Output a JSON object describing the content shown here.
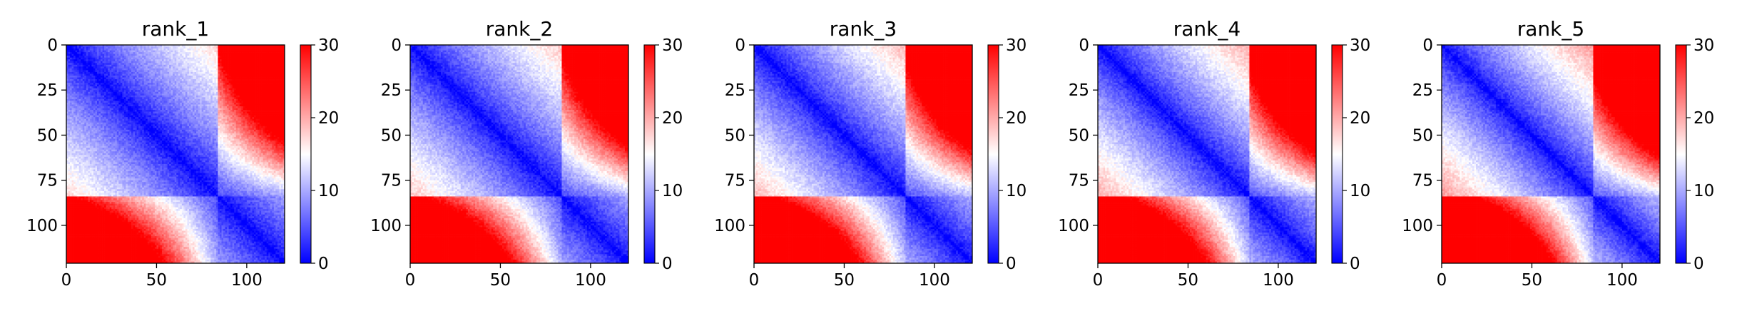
{
  "chart_data": [
    {
      "type": "heatmap",
      "title": "rank_1",
      "xlabel": "",
      "ylabel": "",
      "xlim": [
        0,
        121
      ],
      "ylim": [
        121,
        0
      ],
      "x_ticks": [
        0,
        50,
        100
      ],
      "y_ticks": [
        0,
        25,
        50,
        75,
        100
      ],
      "colorbar": {
        "ticks": [
          0,
          10,
          20,
          30
        ],
        "range": [
          0,
          30
        ]
      },
      "colormap": [
        "#0000ff",
        "#ffffff",
        "#ff0000"
      ],
      "matrix_size": 121,
      "domain_split": 84,
      "diagonal_value": 0,
      "far_corner_value": 30
    },
    {
      "type": "heatmap",
      "title": "rank_2",
      "xlabel": "",
      "ylabel": "",
      "xlim": [
        0,
        121
      ],
      "ylim": [
        121,
        0
      ],
      "x_ticks": [
        0,
        50,
        100
      ],
      "y_ticks": [
        0,
        25,
        50,
        75,
        100
      ],
      "colorbar": {
        "ticks": [
          0,
          10,
          20,
          30
        ],
        "range": [
          0,
          30
        ]
      },
      "colormap": [
        "#0000ff",
        "#ffffff",
        "#ff0000"
      ],
      "matrix_size": 121,
      "domain_split": 84,
      "diagonal_value": 0,
      "far_corner_value": 30
    },
    {
      "type": "heatmap",
      "title": "rank_3",
      "xlabel": "",
      "ylabel": "",
      "xlim": [
        0,
        121
      ],
      "ylim": [
        121,
        0
      ],
      "x_ticks": [
        0,
        50,
        100
      ],
      "y_ticks": [
        0,
        25,
        50,
        75,
        100
      ],
      "colorbar": {
        "ticks": [
          0,
          10,
          20,
          30
        ],
        "range": [
          0,
          30
        ]
      },
      "colormap": [
        "#0000ff",
        "#ffffff",
        "#ff0000"
      ],
      "matrix_size": 121,
      "domain_split": 84,
      "diagonal_value": 0,
      "far_corner_value": 30
    },
    {
      "type": "heatmap",
      "title": "rank_4",
      "xlabel": "",
      "ylabel": "",
      "xlim": [
        0,
        121
      ],
      "ylim": [
        121,
        0
      ],
      "x_ticks": [
        0,
        50,
        100
      ],
      "y_ticks": [
        0,
        25,
        50,
        75,
        100
      ],
      "colorbar": {
        "ticks": [
          0,
          10,
          20,
          30
        ],
        "range": [
          0,
          30
        ]
      },
      "colormap": [
        "#0000ff",
        "#ffffff",
        "#ff0000"
      ],
      "matrix_size": 121,
      "domain_split": 84,
      "diagonal_value": 0,
      "far_corner_value": 30
    },
    {
      "type": "heatmap",
      "title": "rank_5",
      "xlabel": "",
      "ylabel": "",
      "xlim": [
        0,
        121
      ],
      "ylim": [
        121,
        0
      ],
      "x_ticks": [
        0,
        50,
        100
      ],
      "y_ticks": [
        0,
        25,
        50,
        75,
        100
      ],
      "colorbar": {
        "ticks": [
          0,
          10,
          20,
          30
        ],
        "range": [
          0,
          30
        ]
      },
      "colormap": [
        "#0000ff",
        "#ffffff",
        "#ff0000"
      ],
      "matrix_size": 121,
      "domain_split": 84,
      "diagonal_value": 0,
      "far_corner_value": 30
    }
  ]
}
